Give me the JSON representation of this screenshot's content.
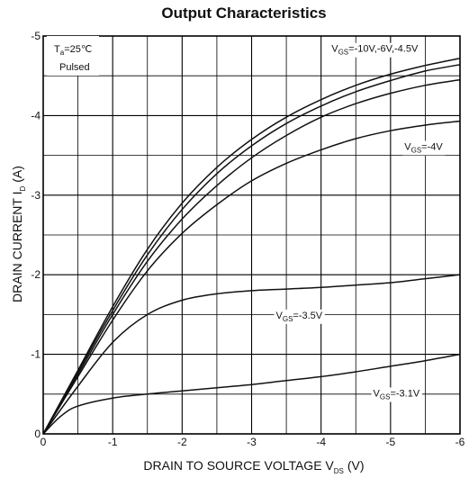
{
  "chart_data": {
    "type": "line",
    "title": "Output Characteristics",
    "xlabel": "DRAIN TO SOURCE VOLTAGE V",
    "xlabel_sub": "DS",
    "xlabel_unit": "(V)",
    "ylabel": "DRAIN CURRENT I",
    "ylabel_sub": "D",
    "ylabel_unit": "(A)",
    "xlim": [
      0,
      -6
    ],
    "ylim": [
      0,
      -5
    ],
    "x_ticks": [
      "0",
      "-1",
      "-2",
      "-3",
      "-4",
      "-5",
      "-6"
    ],
    "y_ticks": [
      "0",
      "-1",
      "-2",
      "-3",
      "-4",
      "-5"
    ],
    "grid": true,
    "condition": {
      "ta_prefix": "T",
      "ta_sub": "a",
      "ta_value": "=25℃",
      "mode": "Pulsed"
    },
    "series": [
      {
        "name": "V_GS=-10V",
        "label": "",
        "x": [
          0,
          -0.5,
          -1,
          -1.5,
          -2,
          -2.5,
          -3,
          -3.5,
          -4,
          -4.5,
          -5,
          -5.5,
          -6
        ],
        "y": [
          0,
          -0.8,
          -1.6,
          -2.32,
          -2.9,
          -3.35,
          -3.7,
          -3.98,
          -4.2,
          -4.38,
          -4.52,
          -4.63,
          -4.72
        ]
      },
      {
        "name": "V_GS=-6V",
        "label": "",
        "x": [
          0,
          -0.5,
          -1,
          -1.5,
          -2,
          -2.5,
          -3,
          -3.5,
          -4,
          -4.5,
          -5,
          -5.5,
          -6
        ],
        "y": [
          0,
          -0.78,
          -1.55,
          -2.25,
          -2.82,
          -3.27,
          -3.62,
          -3.9,
          -4.12,
          -4.3,
          -4.44,
          -4.56,
          -4.64
        ]
      },
      {
        "name": "V_GS=-4.5V",
        "label": "",
        "x": [
          0,
          -0.5,
          -1,
          -1.5,
          -2,
          -2.5,
          -3,
          -3.5,
          -4,
          -4.5,
          -5,
          -5.5,
          -6
        ],
        "y": [
          0,
          -0.75,
          -1.5,
          -2.17,
          -2.7,
          -3.12,
          -3.47,
          -3.75,
          -3.98,
          -4.15,
          -4.28,
          -4.38,
          -4.45
        ]
      },
      {
        "name": "V_GS=-4V",
        "label": "",
        "x": [
          0,
          -0.5,
          -1,
          -1.5,
          -2,
          -2.5,
          -3,
          -3.5,
          -4,
          -4.5,
          -5,
          -5.5,
          -6
        ],
        "y": [
          0,
          -0.72,
          -1.43,
          -2.05,
          -2.52,
          -2.88,
          -3.18,
          -3.4,
          -3.57,
          -3.71,
          -3.81,
          -3.88,
          -3.93
        ]
      },
      {
        "name": "V_GS=-3.5V",
        "label": "",
        "x": [
          0,
          -0.5,
          -1,
          -1.5,
          -2,
          -2.5,
          -3,
          -3.5,
          -4,
          -4.5,
          -5,
          -5.5,
          -6
        ],
        "y": [
          0,
          -0.6,
          -1.15,
          -1.5,
          -1.68,
          -1.76,
          -1.8,
          -1.82,
          -1.84,
          -1.87,
          -1.9,
          -1.95,
          -2.0
        ]
      },
      {
        "name": "V_GS=-3.1V",
        "label": "",
        "x": [
          0,
          -0.25,
          -0.5,
          -1,
          -1.5,
          -2,
          -2.5,
          -3,
          -3.5,
          -4,
          -4.5,
          -5,
          -5.5,
          -6
        ],
        "y": [
          0,
          -0.22,
          -0.35,
          -0.45,
          -0.5,
          -0.54,
          -0.58,
          -0.62,
          -0.67,
          -0.72,
          -0.78,
          -0.85,
          -0.92,
          -1.0
        ]
      }
    ],
    "annotations": [
      {
        "prefix": "V",
        "sub": "GS",
        "text": "=-10V,-6V,-4.5V",
        "x": -4.15,
        "y": -4.8
      },
      {
        "prefix": "V",
        "sub": "GS",
        "text": "=-4V",
        "x": -5.2,
        "y": -3.57
      },
      {
        "prefix": "V",
        "sub": "GS",
        "text": "=-3.5V",
        "x": -3.35,
        "y": -1.45
      },
      {
        "prefix": "V",
        "sub": "GS",
        "text": "=-3.1V",
        "x": -4.75,
        "y": -0.47
      }
    ]
  }
}
